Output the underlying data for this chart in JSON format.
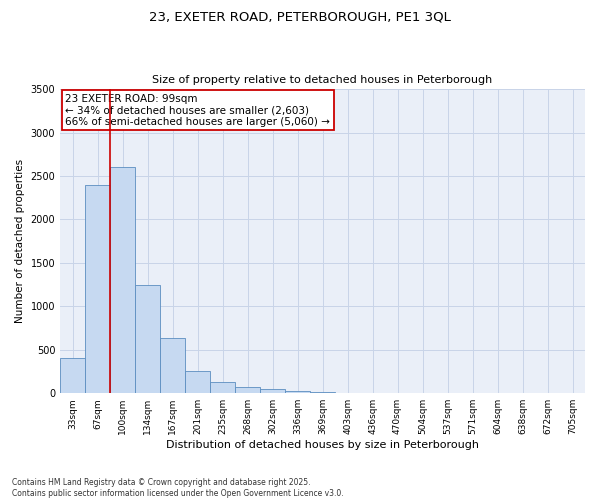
{
  "title1": "23, EXETER ROAD, PETERBOROUGH, PE1 3QL",
  "title2": "Size of property relative to detached houses in Peterborough",
  "xlabel": "Distribution of detached houses by size in Peterborough",
  "ylabel": "Number of detached properties",
  "categories": [
    "33sqm",
    "67sqm",
    "100sqm",
    "134sqm",
    "167sqm",
    "201sqm",
    "235sqm",
    "268sqm",
    "302sqm",
    "336sqm",
    "369sqm",
    "403sqm",
    "436sqm",
    "470sqm",
    "504sqm",
    "537sqm",
    "571sqm",
    "604sqm",
    "638sqm",
    "672sqm",
    "705sqm"
  ],
  "values": [
    400,
    2400,
    2600,
    1250,
    630,
    250,
    130,
    75,
    50,
    20,
    10,
    5,
    0,
    0,
    0,
    0,
    0,
    0,
    0,
    0,
    0
  ],
  "bar_color": "#c6d9f1",
  "bar_edge_color": "#5b8dc0",
  "grid_color": "#c8d4e8",
  "background_color": "#eaeff8",
  "annotation_line1": "23 EXETER ROAD: 99sqm",
  "annotation_line2": "← 34% of detached houses are smaller (2,603)",
  "annotation_line3": "66% of semi-detached houses are larger (5,060) →",
  "annotation_box_color": "#ffffff",
  "annotation_border_color": "#cc0000",
  "red_line_index": 2,
  "ylim": [
    0,
    3500
  ],
  "yticks": [
    0,
    500,
    1000,
    1500,
    2000,
    2500,
    3000,
    3500
  ],
  "footnote1": "Contains HM Land Registry data © Crown copyright and database right 2025.",
  "footnote2": "Contains public sector information licensed under the Open Government Licence v3.0.",
  "title1_fontsize": 9.5,
  "title2_fontsize": 8.0,
  "xlabel_fontsize": 8.0,
  "ylabel_fontsize": 7.5,
  "tick_fontsize": 6.5,
  "annot_fontsize": 7.5,
  "footnote_fontsize": 5.5
}
